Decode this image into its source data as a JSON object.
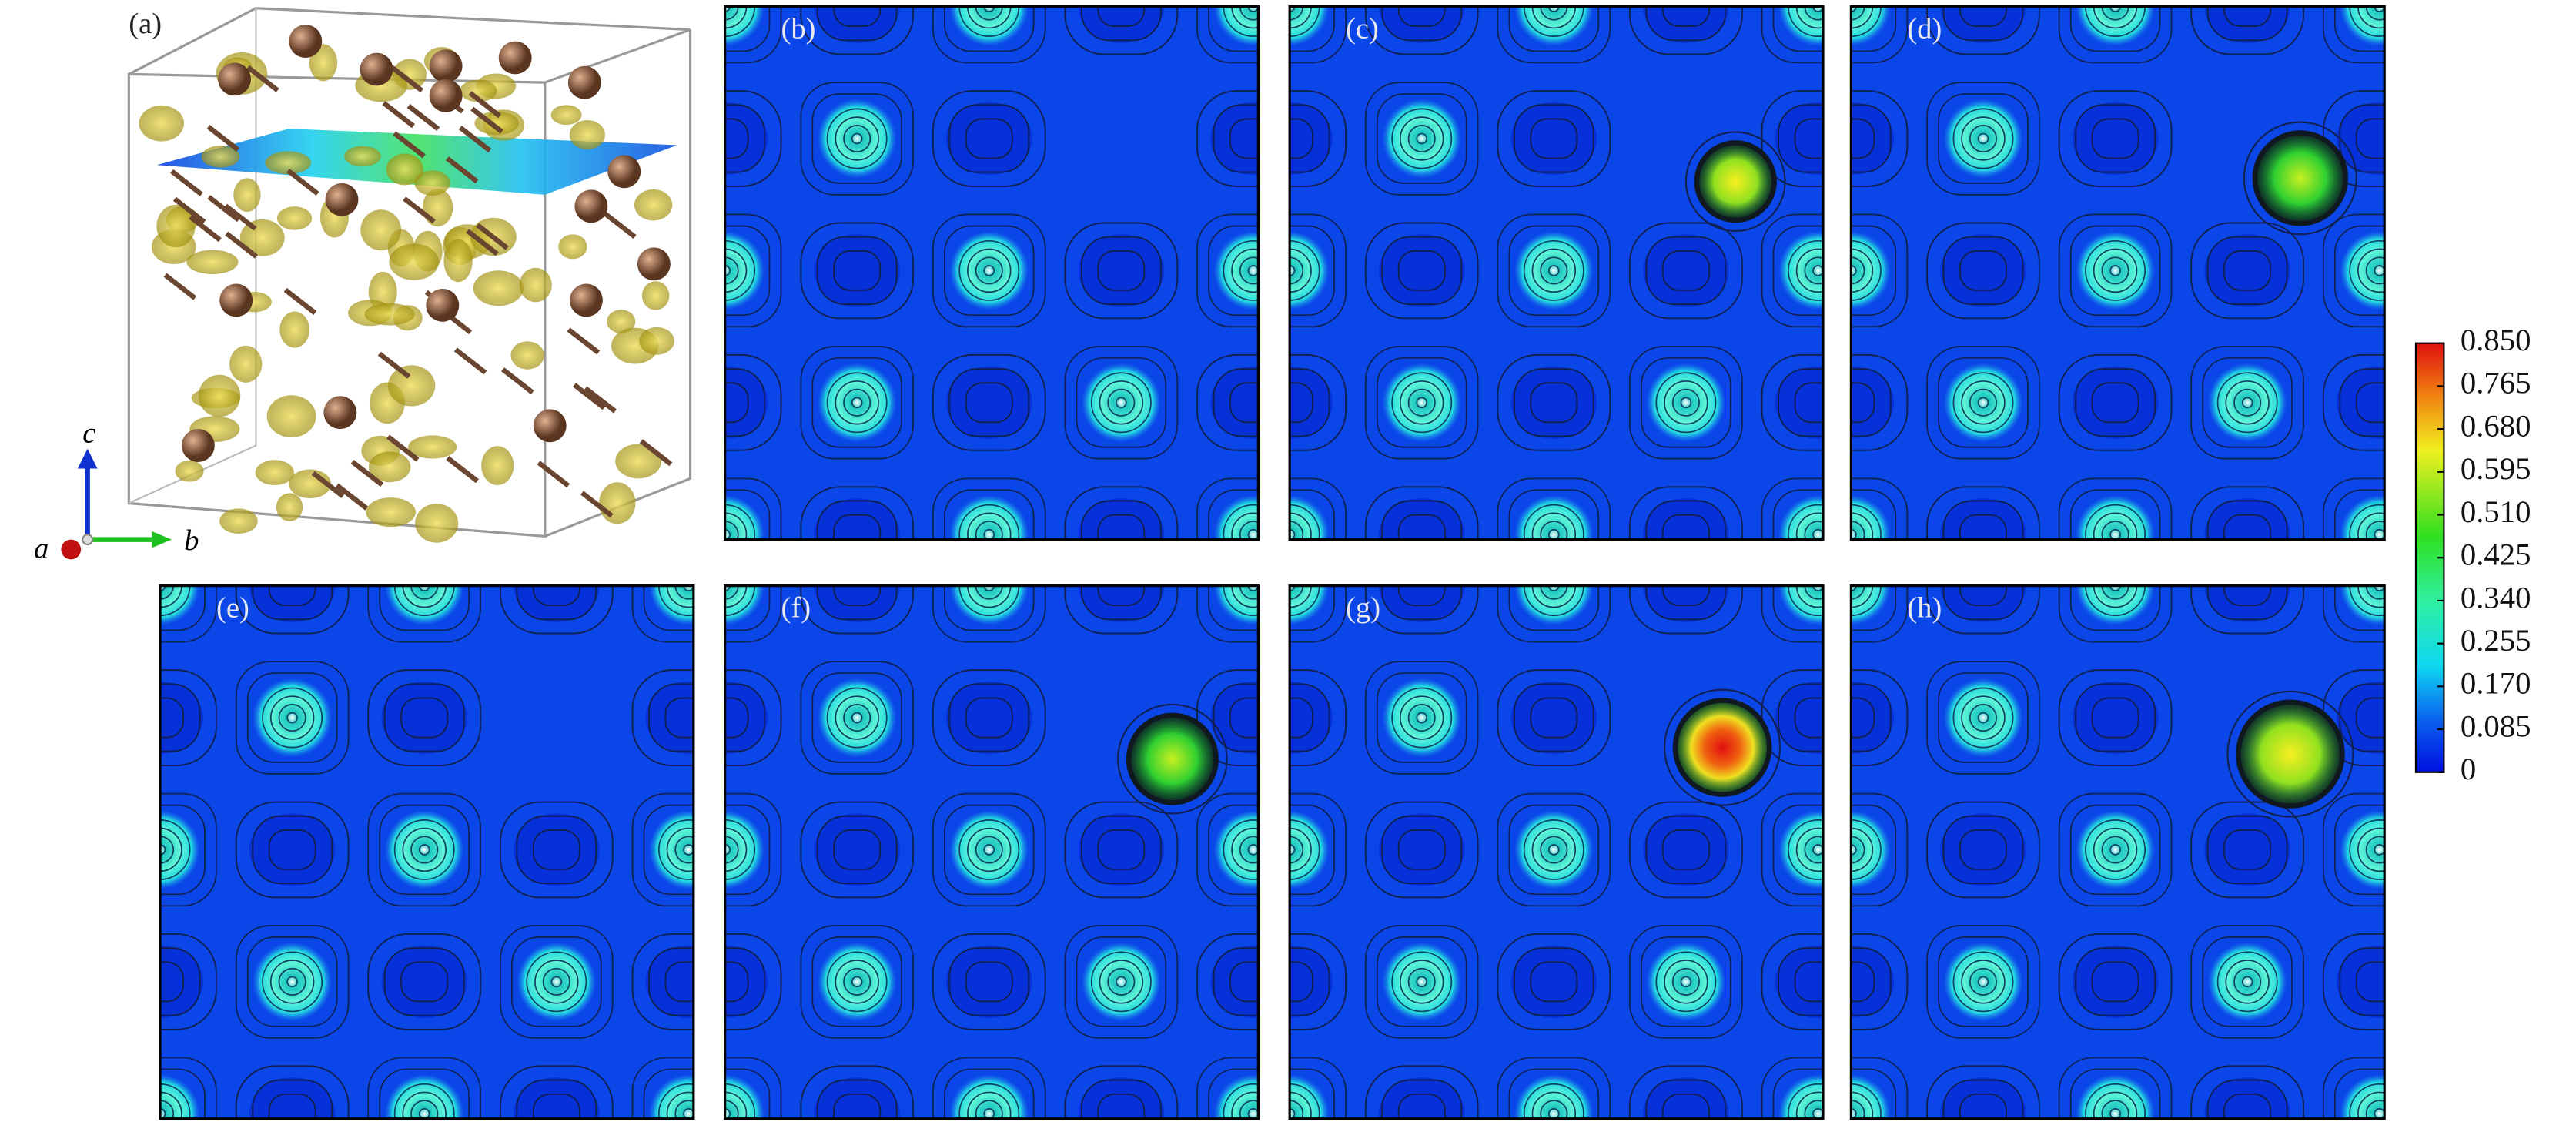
{
  "panels": [
    {
      "label": "(a)"
    },
    {
      "label": "(b)"
    },
    {
      "label": "(c)"
    },
    {
      "label": "(d)"
    },
    {
      "label": "(e)"
    },
    {
      "label": "(f)"
    },
    {
      "label": "(g)"
    },
    {
      "label": "(h)"
    }
  ],
  "axis_labels": [
    "a",
    "b",
    "c"
  ],
  "colorbar": {
    "ticks": [
      0,
      {
        "value": 0.085,
        "label": "0.085"
      },
      {
        "value": 0.17,
        "label": "0.170"
      },
      {
        "value": 0.255,
        "label": "0.255"
      },
      {
        "value": 0.34,
        "label": "0.340"
      },
      {
        "value": 0.425,
        "label": "0.425"
      },
      {
        "value": 0.51,
        "label": "0.510"
      },
      {
        "value": 0.595,
        "label": "0.595"
      },
      {
        "value": 0.68,
        "label": "0.680"
      },
      {
        "value": 0.765,
        "label": "0.765"
      },
      {
        "value": 0.85,
        "label": "0.850"
      }
    ],
    "lim": [
      0,
      0.85
    ]
  }
}
